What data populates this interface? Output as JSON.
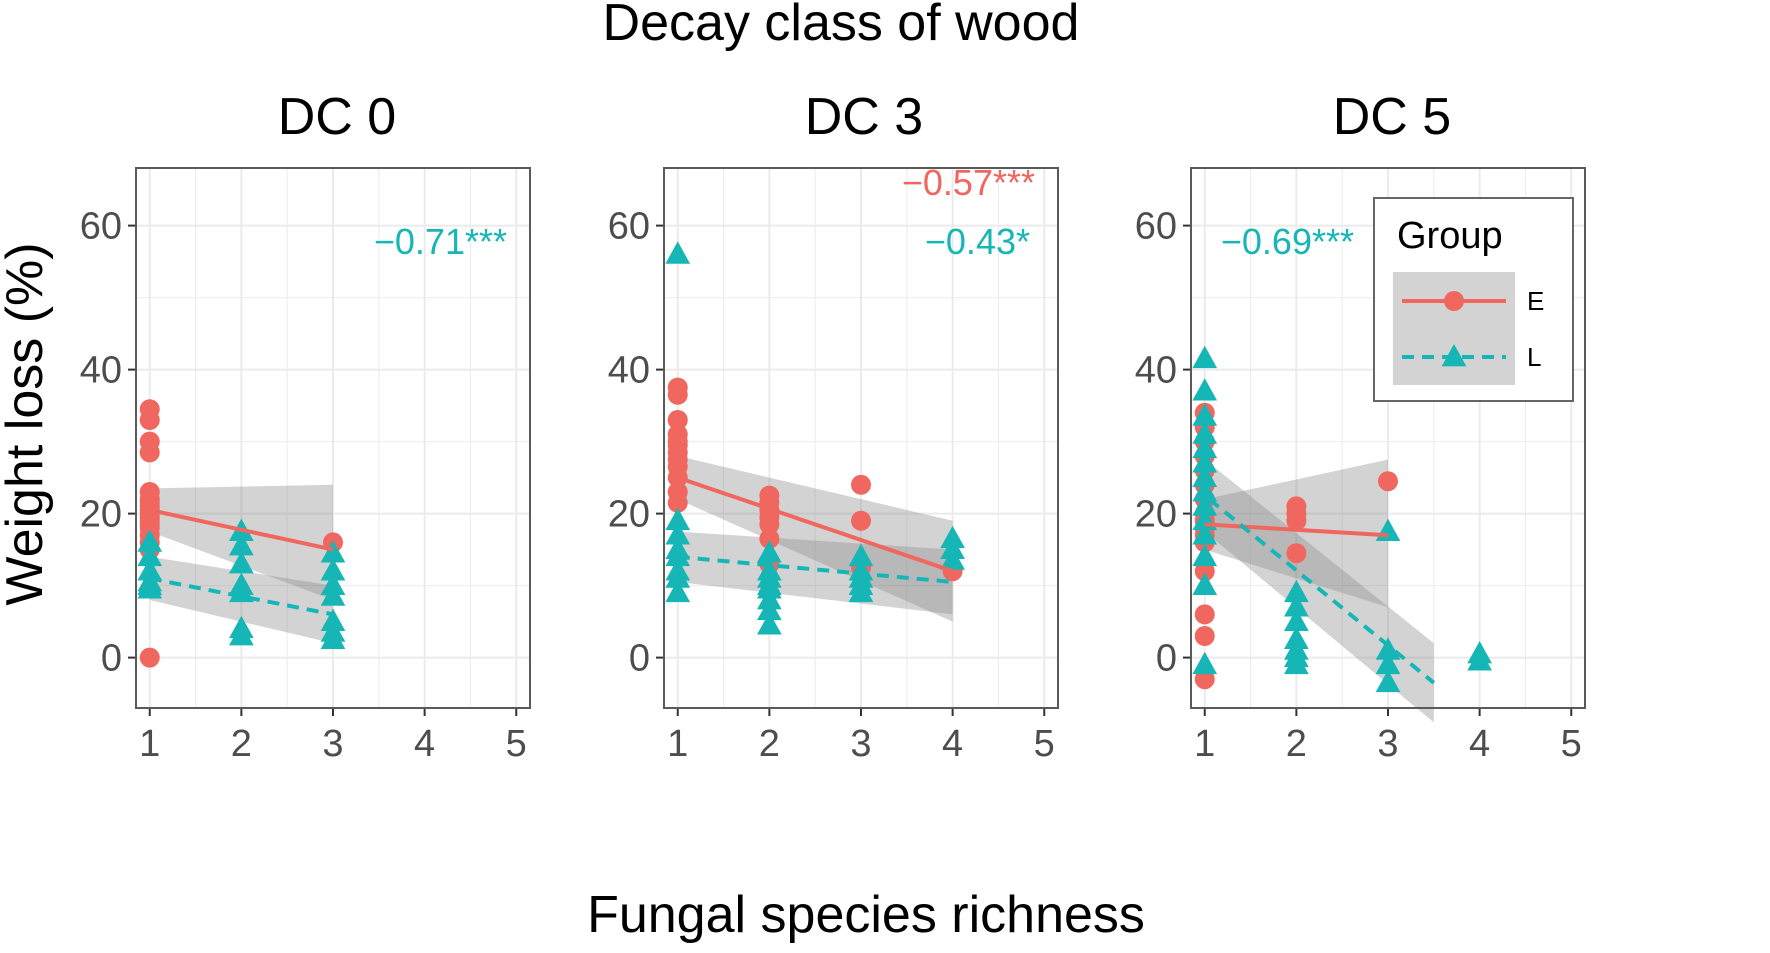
{
  "figure": {
    "title": "Decay class of wood",
    "xlabel": "Fungal species richness",
    "ylabel": "Weight loss (%)"
  },
  "colors": {
    "E": "#F0675F",
    "L": "#17B6B6",
    "band": "#8c8c8c",
    "grid": "#ebebeb",
    "panel_border": "#5a5a5a",
    "tick_text": "#4d4d4d"
  },
  "legend": {
    "title": "Group",
    "entries": [
      {
        "key": "E",
        "label": "E",
        "line": "solid",
        "marker": "circle"
      },
      {
        "key": "L",
        "label": "L",
        "line": "dashed",
        "marker": "triangle"
      }
    ]
  },
  "chart_data": [
    {
      "type": "scatter",
      "title": "DC 0",
      "xlim": [
        0.85,
        5.15
      ],
      "ylim": [
        -7,
        68
      ],
      "xticks": [
        1,
        2,
        3,
        4,
        5
      ],
      "yticks": [
        0,
        20,
        40,
        60
      ],
      "annotations": [
        {
          "text": "−0.71***",
          "series": "L"
        }
      ],
      "series": [
        {
          "name": "E",
          "marker": "circle",
          "x": [
            1,
            1,
            1,
            1,
            1,
            1,
            1,
            1,
            1,
            1,
            1,
            1,
            1,
            1,
            1,
            1,
            1,
            1,
            3
          ],
          "y": [
            34.5,
            33,
            30,
            28.5,
            23,
            22,
            21.5,
            21,
            20.5,
            20,
            19.5,
            19,
            18.5,
            18,
            17,
            16,
            15,
            0,
            16
          ],
          "fit": {
            "x": [
              1,
              3
            ],
            "y": [
              20.5,
              15
            ],
            "band_lo": [
              17.5,
              8
            ],
            "band_hi": [
              23.5,
              24
            ]
          }
        },
        {
          "name": "L",
          "marker": "triangle",
          "x": [
            1,
            1,
            1,
            1,
            1,
            1,
            2,
            2,
            2,
            2,
            2,
            2,
            2,
            3,
            3,
            3,
            3,
            3,
            3,
            3
          ],
          "y": [
            16,
            14,
            12,
            10.5,
            10,
            9.5,
            17.5,
            15.5,
            13,
            10,
            9,
            4,
            3,
            14.5,
            12,
            10,
            8.5,
            5,
            3.5,
            2.5
          ],
          "fit": {
            "x": [
              1,
              3
            ],
            "y": [
              11,
              6
            ],
            "band_lo": [
              8,
              2
            ],
            "band_hi": [
              14,
              10
            ]
          }
        }
      ]
    },
    {
      "type": "scatter",
      "title": "DC 3",
      "xlim": [
        0.85,
        5.15
      ],
      "ylim": [
        -7,
        68
      ],
      "xticks": [
        1,
        2,
        3,
        4,
        5
      ],
      "yticks": [
        0,
        20,
        40,
        60
      ],
      "annotations": [
        {
          "text": "−0.57***",
          "series": "E"
        },
        {
          "text": "−0.43*",
          "series": "L"
        }
      ],
      "series": [
        {
          "name": "E",
          "marker": "circle",
          "x": [
            1,
            1,
            1,
            1,
            1,
            1,
            1,
            1,
            1,
            1,
            1,
            1,
            2,
            2,
            2,
            2,
            2,
            2,
            2,
            3,
            3,
            3,
            4
          ],
          "y": [
            37.5,
            36.5,
            33,
            31,
            30,
            29.5,
            28.5,
            27.5,
            26.5,
            25,
            23,
            21.5,
            22.5,
            21.5,
            20.5,
            19.5,
            18.5,
            16.5,
            13,
            24,
            19,
            12.5,
            12
          ],
          "fit": {
            "x": [
              1,
              4
            ],
            "y": [
              25,
              12
            ],
            "band_lo": [
              22,
              5
            ],
            "band_hi": [
              28,
              19
            ]
          }
        },
        {
          "name": "L",
          "marker": "triangle",
          "x": [
            1,
            1,
            1,
            1,
            1,
            1,
            1,
            1,
            2,
            2,
            2,
            2,
            2,
            2,
            2,
            2,
            3,
            3,
            3,
            3,
            3,
            4,
            4,
            4
          ],
          "y": [
            56,
            19,
            17,
            15,
            14,
            12,
            11,
            9,
            14.5,
            12,
            11,
            10,
            9.5,
            8,
            6.5,
            4.5,
            14,
            12,
            11,
            10,
            9,
            16.5,
            15,
            13.5
          ],
          "fit": {
            "x": [
              1,
              4
            ],
            "y": [
              14,
              10.5
            ],
            "band_lo": [
              10.5,
              6
            ],
            "band_hi": [
              17.5,
              15
            ]
          }
        }
      ]
    },
    {
      "type": "scatter",
      "title": "DC 5",
      "xlim": [
        0.85,
        5.15
      ],
      "ylim": [
        -7,
        68
      ],
      "xticks": [
        1,
        2,
        3,
        4,
        5
      ],
      "yticks": [
        0,
        20,
        40,
        60
      ],
      "annotations": [
        {
          "text": "−0.69***",
          "series": "L"
        }
      ],
      "series": [
        {
          "name": "E",
          "marker": "circle",
          "x": [
            1,
            1,
            1,
            1,
            1,
            1,
            1,
            1,
            1,
            1,
            1,
            1,
            1,
            1,
            1,
            1,
            2,
            2,
            2,
            2,
            3
          ],
          "y": [
            34,
            32,
            30,
            28,
            26,
            24,
            22,
            20,
            19,
            18,
            17,
            16,
            12,
            6,
            3,
            -3,
            21,
            20,
            19,
            14.5,
            24.5
          ],
          "fit": {
            "x": [
              1,
              3
            ],
            "y": [
              18.5,
              17
            ],
            "band_lo": [
              15,
              7
            ],
            "band_hi": [
              22,
              27.5
            ]
          }
        },
        {
          "name": "L",
          "marker": "triangle",
          "x": [
            1,
            1,
            1,
            1,
            1,
            1,
            1,
            1,
            1,
            1,
            1,
            1,
            1,
            1,
            2,
            2,
            2,
            2,
            2,
            2,
            2,
            3,
            3,
            3,
            3,
            4,
            4
          ],
          "y": [
            41.5,
            37,
            33.5,
            31,
            29,
            27,
            25,
            23,
            21,
            19,
            17,
            14,
            10,
            -1,
            9,
            7,
            5,
            2.5,
            1,
            0,
            -1,
            17.5,
            1,
            -1,
            -3.5,
            0.5,
            -0.5
          ],
          "fit": {
            "x": [
              1.05,
              3.5
            ],
            "y": [
              22,
              -3.5
            ],
            "band_lo": [
              17,
              -9
            ],
            "band_hi": [
              27,
              2
            ]
          }
        }
      ]
    }
  ]
}
